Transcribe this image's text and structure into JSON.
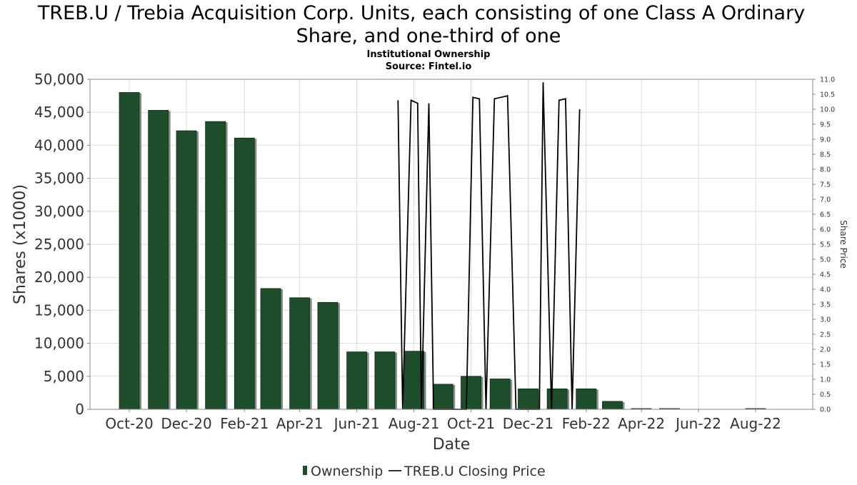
{
  "chart_data": {
    "type": "bar",
    "title_lines": [
      "TREB.U / Trebia Acquisition Corp. Units, each consisting of one Class A Ordinary",
      "Share, and one-third of one"
    ],
    "subtitle_lines": [
      "Institutional Ownership",
      "Source: Fintel.io"
    ],
    "xlabel": "Date",
    "ylabel": "Shares (x1000)",
    "y2label": "Share Price",
    "ylim": [
      0,
      50000
    ],
    "y_ticks": [
      "0",
      "5,000",
      "10,000",
      "15,000",
      "20,000",
      "25,000",
      "30,000",
      "35,000",
      "40,000",
      "45,000",
      "50,000"
    ],
    "y2lim": [
      0,
      11.0
    ],
    "y2_ticks": [
      "0.0",
      "0.5",
      "1.0",
      "1.5",
      "2.0",
      "2.5",
      "3.0",
      "3.5",
      "4.0",
      "4.5",
      "5.0",
      "5.5",
      "6.0",
      "6.5",
      "7.0",
      "7.5",
      "8.0",
      "8.5",
      "9.0",
      "9.5",
      "10.0",
      "10.5",
      "11.0"
    ],
    "x_ticks": [
      "Oct-20",
      "Dec-20",
      "Feb-21",
      "Apr-21",
      "Jun-21",
      "Aug-21",
      "Oct-21",
      "Dec-21",
      "Feb-22",
      "Apr-22",
      "Jun-22",
      "Aug-22"
    ],
    "grid": true,
    "legend_position": "bottom",
    "colors": {
      "bar": "#1e4d2b",
      "bar_shadow": "#8a8a8a",
      "line": "#000000",
      "grid": "#dddddd"
    },
    "series": [
      {
        "name": "Ownership",
        "kind": "bar",
        "points": [
          {
            "date": "2020-10-01",
            "value": 48000
          },
          {
            "date": "2020-11-01",
            "value": 45300
          },
          {
            "date": "2020-12-01",
            "value": 42200
          },
          {
            "date": "2021-01-01",
            "value": 43600
          },
          {
            "date": "2021-02-01",
            "value": 41100
          },
          {
            "date": "2021-03-01",
            "value": 18300
          },
          {
            "date": "2021-04-01",
            "value": 16900
          },
          {
            "date": "2021-05-01",
            "value": 16200
          },
          {
            "date": "2021-06-01",
            "value": 8700
          },
          {
            "date": "2021-07-01",
            "value": 8700
          },
          {
            "date": "2021-08-01",
            "value": 8800
          },
          {
            "date": "2021-09-01",
            "value": 3800
          },
          {
            "date": "2021-10-01",
            "value": 5000
          },
          {
            "date": "2021-11-01",
            "value": 4600
          },
          {
            "date": "2021-12-01",
            "value": 3100
          },
          {
            "date": "2022-01-01",
            "value": 3100
          },
          {
            "date": "2022-02-01",
            "value": 3100
          },
          {
            "date": "2022-03-01",
            "value": 1200
          },
          {
            "date": "2022-04-01",
            "value": 100
          },
          {
            "date": "2022-05-01",
            "value": 100
          },
          {
            "date": "2022-08-01",
            "value": 50
          }
        ]
      },
      {
        "name": "TREB.U Closing Price",
        "kind": "line",
        "points": [
          {
            "date": "2021-07-15",
            "value": 10.3
          },
          {
            "date": "2021-07-20",
            "value": 0.0
          },
          {
            "date": "2021-07-29",
            "value": 10.3
          },
          {
            "date": "2021-08-05",
            "value": 10.2
          },
          {
            "date": "2021-08-09",
            "value": 0.0
          },
          {
            "date": "2021-08-17",
            "value": 10.2
          },
          {
            "date": "2021-08-22",
            "value": 0.0
          },
          {
            "date": "2021-09-26",
            "value": 0.0
          },
          {
            "date": "2021-10-03",
            "value": 10.4
          },
          {
            "date": "2021-10-10",
            "value": 10.35
          },
          {
            "date": "2021-10-17",
            "value": 0.0
          },
          {
            "date": "2021-10-26",
            "value": 10.35
          },
          {
            "date": "2021-11-09",
            "value": 10.45
          },
          {
            "date": "2021-11-18",
            "value": 0.0
          },
          {
            "date": "2021-12-13",
            "value": 0.0
          },
          {
            "date": "2021-12-17",
            "value": 10.9
          },
          {
            "date": "2021-12-26",
            "value": 0.0
          },
          {
            "date": "2022-01-03",
            "value": 10.3
          },
          {
            "date": "2022-01-10",
            "value": 10.35
          },
          {
            "date": "2022-01-17",
            "value": 0.0
          },
          {
            "date": "2022-01-25",
            "value": 10.0
          }
        ]
      }
    ]
  }
}
